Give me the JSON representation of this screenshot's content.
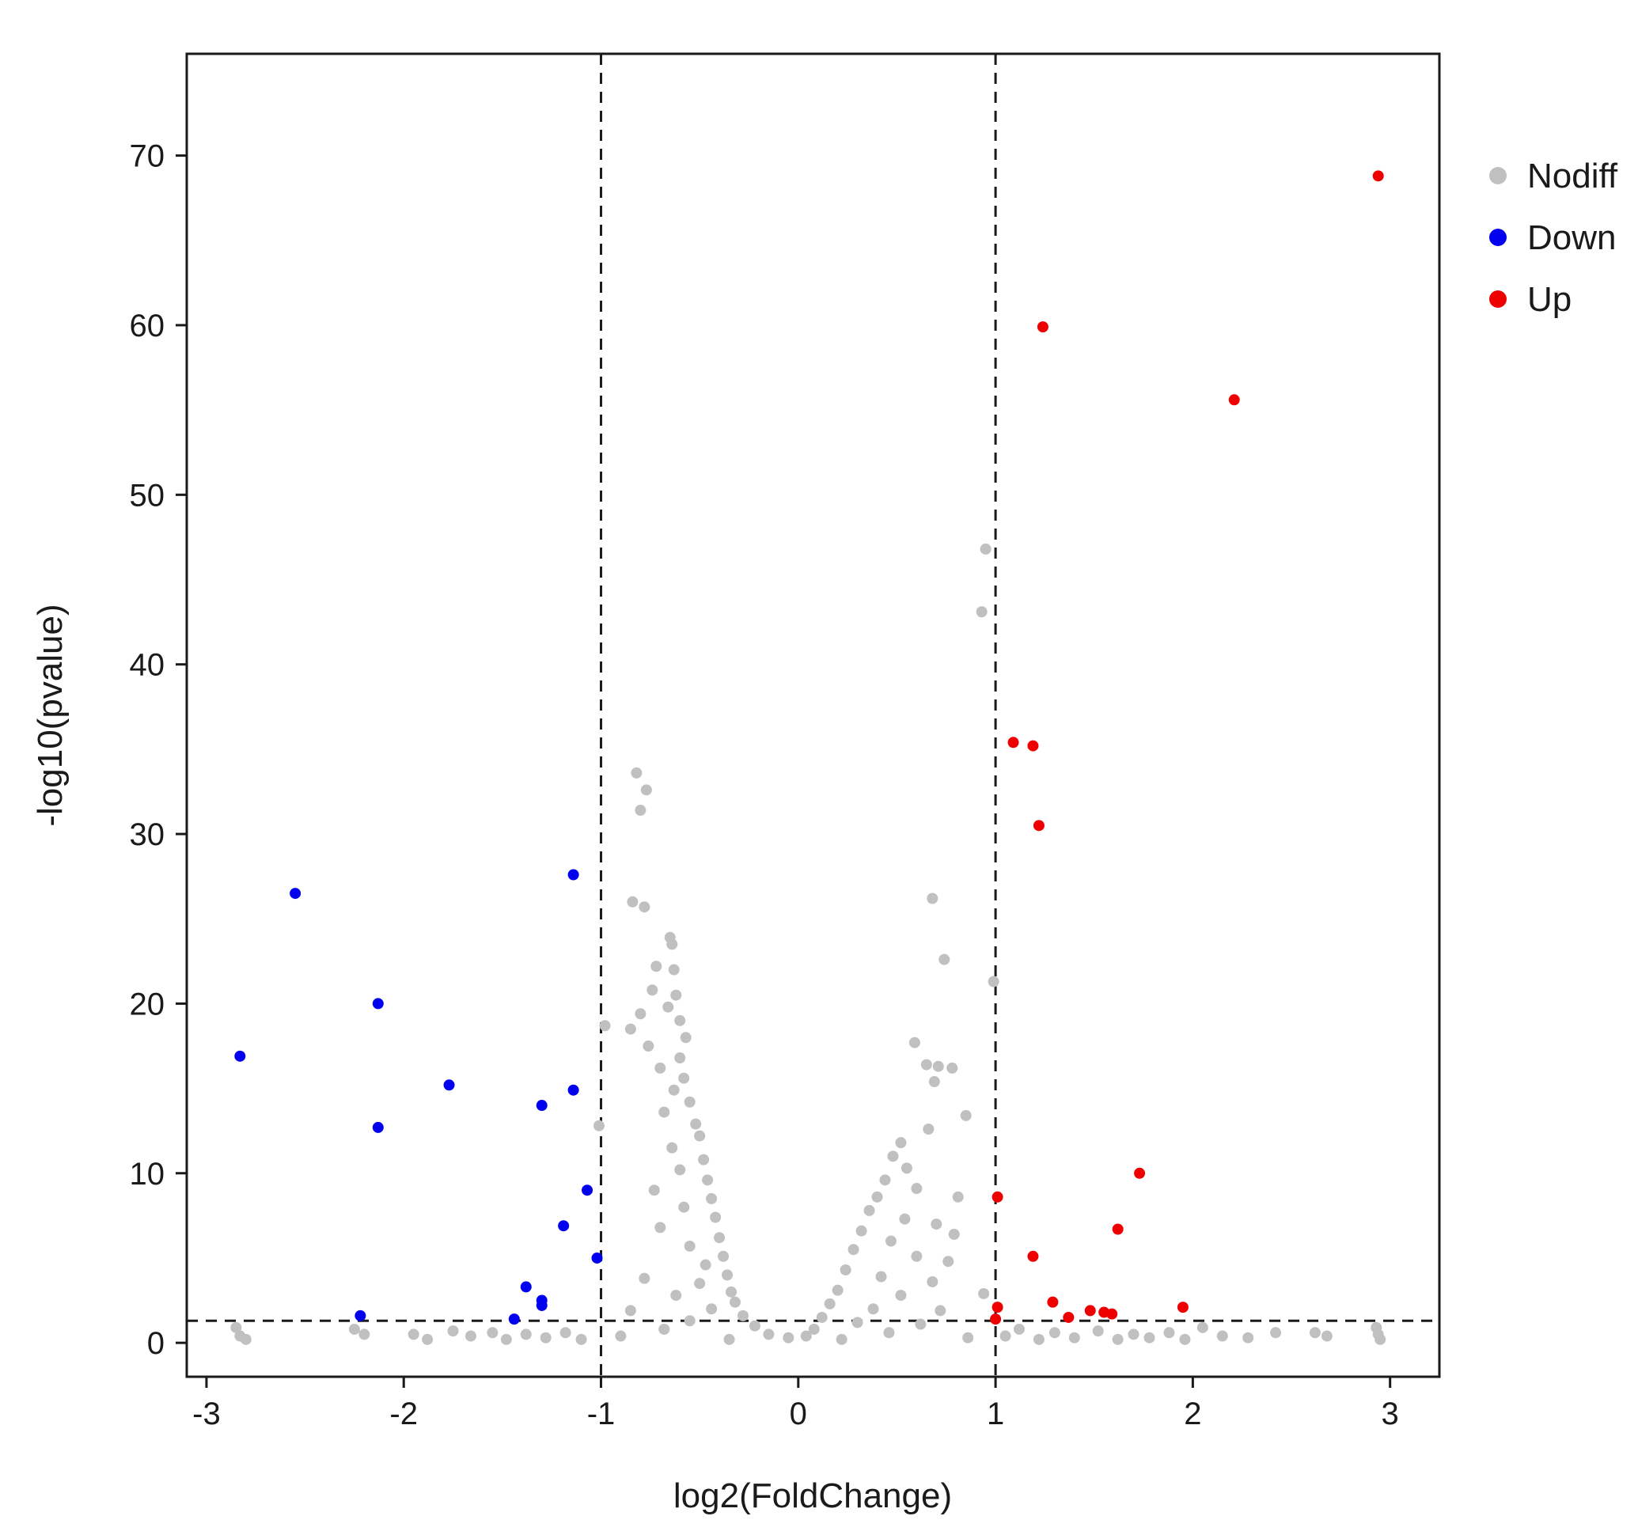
{
  "chart_data": {
    "type": "scatter",
    "title": "",
    "xlabel": "log2(FoldChange)",
    "ylabel": "-log10(pvalue)",
    "xlim": [
      -3.1,
      3.25
    ],
    "ylim": [
      -2,
      76
    ],
    "xticks": [
      -3,
      -2,
      -1,
      0,
      1,
      2,
      3
    ],
    "xtick_labels": [
      "-3",
      "-2",
      "-1",
      "0",
      "1",
      "2",
      "3"
    ],
    "yticks": [
      0,
      10,
      20,
      30,
      40,
      50,
      60,
      70
    ],
    "ytick_labels": [
      "0",
      "10",
      "20",
      "30",
      "40",
      "50",
      "60",
      "70"
    ],
    "grid": false,
    "legend_position": "right",
    "thresholds": {
      "fold_change_lines": [
        -1,
        1
      ],
      "pvalue_line": 1.3
    },
    "series": [
      {
        "name": "Nodiff",
        "color": "#c0c0c0",
        "points": [
          [
            -0.82,
            33.6
          ],
          [
            -0.77,
            32.6
          ],
          [
            -0.8,
            31.4
          ],
          [
            -0.84,
            26.0
          ],
          [
            -0.78,
            25.7
          ],
          [
            -0.65,
            23.9
          ],
          [
            -0.64,
            23.5
          ],
          [
            -0.72,
            22.2
          ],
          [
            -0.63,
            22.0
          ],
          [
            -0.74,
            20.8
          ],
          [
            -0.62,
            20.5
          ],
          [
            -0.66,
            19.8
          ],
          [
            -0.6,
            19.0
          ],
          [
            -0.98,
            18.7
          ],
          [
            -0.8,
            19.4
          ],
          [
            -0.85,
            18.5
          ],
          [
            -0.57,
            18.0
          ],
          [
            -0.76,
            17.5
          ],
          [
            -0.6,
            16.8
          ],
          [
            -0.7,
            16.2
          ],
          [
            -0.58,
            15.6
          ],
          [
            -0.63,
            14.9
          ],
          [
            -0.55,
            14.2
          ],
          [
            -0.68,
            13.6
          ],
          [
            -0.52,
            12.9
          ],
          [
            -1.01,
            12.8
          ],
          [
            -0.5,
            12.2
          ],
          [
            -0.64,
            11.5
          ],
          [
            -0.48,
            10.8
          ],
          [
            -0.6,
            10.2
          ],
          [
            -0.46,
            9.6
          ],
          [
            -0.73,
            9.0
          ],
          [
            -0.44,
            8.5
          ],
          [
            -0.58,
            8.0
          ],
          [
            -0.42,
            7.4
          ],
          [
            -0.7,
            6.8
          ],
          [
            -0.4,
            6.2
          ],
          [
            -0.55,
            5.7
          ],
          [
            -0.38,
            5.1
          ],
          [
            -0.47,
            4.6
          ],
          [
            -0.36,
            4.0
          ],
          [
            -0.78,
            3.8
          ],
          [
            -0.5,
            3.5
          ],
          [
            -0.34,
            3.0
          ],
          [
            -0.62,
            2.8
          ],
          [
            -0.32,
            2.4
          ],
          [
            -0.44,
            2.0
          ],
          [
            -0.85,
            1.9
          ],
          [
            -0.28,
            1.6
          ],
          [
            -0.55,
            1.3
          ],
          [
            -0.22,
            1.0
          ],
          [
            -0.68,
            0.8
          ],
          [
            -0.15,
            0.5
          ],
          [
            -0.9,
            0.4
          ],
          [
            -0.05,
            0.3
          ],
          [
            -0.35,
            0.2
          ],
          [
            0.95,
            46.8
          ],
          [
            0.93,
            43.1
          ],
          [
            0.68,
            26.2
          ],
          [
            0.74,
            22.6
          ],
          [
            0.99,
            21.3
          ],
          [
            0.59,
            17.7
          ],
          [
            0.65,
            16.4
          ],
          [
            0.71,
            16.3
          ],
          [
            0.78,
            16.2
          ],
          [
            0.69,
            15.4
          ],
          [
            0.85,
            13.4
          ],
          [
            0.66,
            12.6
          ],
          [
            0.52,
            11.8
          ],
          [
            0.48,
            11.0
          ],
          [
            0.55,
            10.3
          ],
          [
            0.44,
            9.6
          ],
          [
            0.6,
            9.1
          ],
          [
            0.4,
            8.6
          ],
          [
            0.81,
            8.6
          ],
          [
            0.36,
            7.8
          ],
          [
            0.54,
            7.3
          ],
          [
            0.7,
            7.0
          ],
          [
            0.32,
            6.6
          ],
          [
            0.79,
            6.4
          ],
          [
            0.47,
            6.0
          ],
          [
            0.28,
            5.5
          ],
          [
            0.6,
            5.1
          ],
          [
            0.76,
            4.8
          ],
          [
            0.24,
            4.3
          ],
          [
            0.42,
            3.9
          ],
          [
            0.68,
            3.6
          ],
          [
            0.2,
            3.1
          ],
          [
            0.52,
            2.8
          ],
          [
            0.94,
            2.9
          ],
          [
            0.16,
            2.3
          ],
          [
            0.38,
            2.0
          ],
          [
            0.72,
            1.9
          ],
          [
            0.12,
            1.5
          ],
          [
            0.3,
            1.2
          ],
          [
            0.62,
            1.1
          ],
          [
            0.08,
            0.8
          ],
          [
            0.46,
            0.6
          ],
          [
            0.04,
            0.4
          ],
          [
            0.86,
            0.3
          ],
          [
            0.22,
            0.2
          ],
          [
            -2.85,
            0.9
          ],
          [
            -2.83,
            0.4
          ],
          [
            -2.8,
            0.2
          ],
          [
            -2.25,
            0.8
          ],
          [
            -2.2,
            0.5
          ],
          [
            -1.95,
            0.5
          ],
          [
            -1.88,
            0.2
          ],
          [
            -1.75,
            0.7
          ],
          [
            -1.66,
            0.4
          ],
          [
            -1.55,
            0.6
          ],
          [
            -1.48,
            0.2
          ],
          [
            -1.38,
            0.5
          ],
          [
            -1.28,
            0.3
          ],
          [
            -1.18,
            0.6
          ],
          [
            -1.1,
            0.2
          ],
          [
            1.05,
            0.4
          ],
          [
            1.12,
            0.8
          ],
          [
            1.22,
            0.2
          ],
          [
            1.3,
            0.6
          ],
          [
            1.4,
            0.3
          ],
          [
            1.52,
            0.7
          ],
          [
            1.62,
            0.2
          ],
          [
            1.7,
            0.5
          ],
          [
            1.78,
            0.3
          ],
          [
            1.88,
            0.6
          ],
          [
            1.96,
            0.2
          ],
          [
            2.05,
            0.9
          ],
          [
            2.15,
            0.4
          ],
          [
            2.28,
            0.3
          ],
          [
            2.42,
            0.6
          ],
          [
            2.62,
            0.6
          ],
          [
            2.68,
            0.4
          ],
          [
            2.93,
            0.9
          ],
          [
            2.94,
            0.5
          ],
          [
            2.95,
            0.2
          ]
        ]
      },
      {
        "name": "Down",
        "color": "#0000ee",
        "points": [
          [
            -2.55,
            26.5
          ],
          [
            -1.14,
            27.6
          ],
          [
            -2.13,
            20.0
          ],
          [
            -2.83,
            16.9
          ],
          [
            -1.77,
            15.2
          ],
          [
            -1.14,
            14.9
          ],
          [
            -1.3,
            14.0
          ],
          [
            -2.13,
            12.7
          ],
          [
            -1.07,
            9.0
          ],
          [
            -1.19,
            6.9
          ],
          [
            -1.02,
            5.0
          ],
          [
            -1.38,
            3.3
          ],
          [
            -1.3,
            2.5
          ],
          [
            -1.3,
            2.2
          ],
          [
            -2.22,
            1.6
          ],
          [
            -1.44,
            1.4
          ]
        ]
      },
      {
        "name": "Up",
        "color": "#ee0000",
        "points": [
          [
            2.94,
            68.8
          ],
          [
            1.24,
            59.9
          ],
          [
            2.21,
            55.6
          ],
          [
            1.09,
            35.4
          ],
          [
            1.19,
            35.2
          ],
          [
            1.22,
            30.5
          ],
          [
            1.73,
            10.0
          ],
          [
            1.01,
            8.6
          ],
          [
            1.62,
            6.7
          ],
          [
            1.19,
            5.1
          ],
          [
            1.29,
            2.4
          ],
          [
            1.95,
            2.1
          ],
          [
            1.01,
            2.1
          ],
          [
            1.48,
            1.9
          ],
          [
            1.55,
            1.8
          ],
          [
            1.59,
            1.7
          ],
          [
            1.37,
            1.5
          ],
          [
            1.0,
            1.4
          ]
        ]
      }
    ]
  }
}
